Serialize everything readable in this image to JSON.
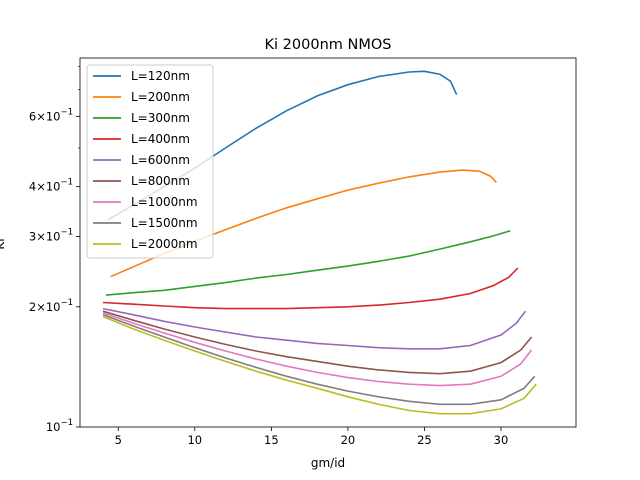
{
  "chart_data": {
    "type": "line",
    "title": "Ki 2000nm NMOS",
    "xlabel": "gm/id",
    "ylabel": "Ki",
    "xlim": [
      2.5,
      34.9
    ],
    "ylim": [
      0.1,
      0.84
    ],
    "yscale": "log",
    "xticks": [
      5,
      10,
      15,
      20,
      25,
      30
    ],
    "yticks": [
      {
        "value": 0.1,
        "base": "10",
        "exp": "−1"
      },
      {
        "value": 0.2,
        "base": "2×10",
        "exp": "−1"
      },
      {
        "value": 0.3,
        "base": "3×10",
        "exp": "−1"
      },
      {
        "value": 0.4,
        "base": "4×10",
        "exp": "−1"
      },
      {
        "value": 0.6,
        "base": "6×10",
        "exp": "−1"
      }
    ],
    "minor_yticks": [
      0.5,
      0.7,
      0.8
    ],
    "legend_position": "top-left",
    "series": [
      {
        "name": "L=120nm",
        "color": "#1f77b4",
        "points": [
          [
            4.3,
            0.33
          ],
          [
            6,
            0.36
          ],
          [
            8,
            0.4
          ],
          [
            10,
            0.445
          ],
          [
            12,
            0.5
          ],
          [
            14,
            0.56
          ],
          [
            16,
            0.62
          ],
          [
            18,
            0.675
          ],
          [
            20,
            0.72
          ],
          [
            22,
            0.755
          ],
          [
            24,
            0.775
          ],
          [
            25,
            0.778
          ],
          [
            26,
            0.765
          ],
          [
            26.7,
            0.735
          ],
          [
            27.1,
            0.68
          ]
        ]
      },
      {
        "name": "L=200nm",
        "color": "#ff7f0e",
        "points": [
          [
            4.5,
            0.238
          ],
          [
            6,
            0.252
          ],
          [
            8,
            0.272
          ],
          [
            10,
            0.292
          ],
          [
            12,
            0.312
          ],
          [
            14,
            0.333
          ],
          [
            16,
            0.354
          ],
          [
            18,
            0.373
          ],
          [
            20,
            0.392
          ],
          [
            22,
            0.408
          ],
          [
            24,
            0.423
          ],
          [
            26,
            0.435
          ],
          [
            27.5,
            0.44
          ],
          [
            28.6,
            0.437
          ],
          [
            29.3,
            0.425
          ],
          [
            29.7,
            0.41
          ]
        ]
      },
      {
        "name": "L=300nm",
        "color": "#2ca02c",
        "points": [
          [
            4.2,
            0.214
          ],
          [
            6,
            0.217
          ],
          [
            8,
            0.22
          ],
          [
            10,
            0.225
          ],
          [
            12,
            0.23
          ],
          [
            14,
            0.236
          ],
          [
            16,
            0.241
          ],
          [
            18,
            0.247
          ],
          [
            20,
            0.253
          ],
          [
            22,
            0.26
          ],
          [
            24,
            0.268
          ],
          [
            26,
            0.279
          ],
          [
            28,
            0.291
          ],
          [
            29.5,
            0.301
          ],
          [
            30.6,
            0.31
          ]
        ]
      },
      {
        "name": "L=400nm",
        "color": "#d62728",
        "points": [
          [
            4,
            0.205
          ],
          [
            6,
            0.203
          ],
          [
            8,
            0.201
          ],
          [
            10,
            0.199
          ],
          [
            12,
            0.198
          ],
          [
            14,
            0.198
          ],
          [
            16,
            0.198
          ],
          [
            18,
            0.199
          ],
          [
            20,
            0.2
          ],
          [
            22,
            0.202
          ],
          [
            24,
            0.205
          ],
          [
            26,
            0.209
          ],
          [
            28,
            0.216
          ],
          [
            29.5,
            0.226
          ],
          [
            30.5,
            0.237
          ],
          [
            31.1,
            0.25
          ]
        ]
      },
      {
        "name": "L=600nm",
        "color": "#9467bd",
        "points": [
          [
            4,
            0.198
          ],
          [
            6,
            0.191
          ],
          [
            8,
            0.184
          ],
          [
            10,
            0.178
          ],
          [
            12,
            0.173
          ],
          [
            14,
            0.168
          ],
          [
            16,
            0.165
          ],
          [
            18,
            0.162
          ],
          [
            20,
            0.16
          ],
          [
            22,
            0.158
          ],
          [
            24,
            0.157
          ],
          [
            26,
            0.157
          ],
          [
            28,
            0.16
          ],
          [
            30,
            0.17
          ],
          [
            31,
            0.182
          ],
          [
            31.6,
            0.195
          ]
        ]
      },
      {
        "name": "L=800nm",
        "color": "#8c564b",
        "points": [
          [
            4,
            0.195
          ],
          [
            6,
            0.185
          ],
          [
            8,
            0.176
          ],
          [
            10,
            0.168
          ],
          [
            12,
            0.161
          ],
          [
            14,
            0.155
          ],
          [
            16,
            0.15
          ],
          [
            18,
            0.146
          ],
          [
            20,
            0.142
          ],
          [
            22,
            0.139
          ],
          [
            24,
            0.137
          ],
          [
            26,
            0.136
          ],
          [
            28,
            0.138
          ],
          [
            30,
            0.145
          ],
          [
            31.3,
            0.156
          ],
          [
            32,
            0.168
          ]
        ]
      },
      {
        "name": "L=1000nm",
        "color": "#e377c2",
        "points": [
          [
            4,
            0.193
          ],
          [
            6,
            0.182
          ],
          [
            8,
            0.172
          ],
          [
            10,
            0.163
          ],
          [
            12,
            0.155
          ],
          [
            14,
            0.148
          ],
          [
            16,
            0.142
          ],
          [
            18,
            0.137
          ],
          [
            20,
            0.133
          ],
          [
            22,
            0.13
          ],
          [
            24,
            0.128
          ],
          [
            26,
            0.127
          ],
          [
            28,
            0.128
          ],
          [
            30,
            0.134
          ],
          [
            31.3,
            0.144
          ],
          [
            32,
            0.156
          ]
        ]
      },
      {
        "name": "L=1500nm",
        "color": "#7f7f7f",
        "points": [
          [
            4,
            0.191
          ],
          [
            6,
            0.179
          ],
          [
            8,
            0.168
          ],
          [
            10,
            0.158
          ],
          [
            12,
            0.149
          ],
          [
            14,
            0.141
          ],
          [
            16,
            0.134
          ],
          [
            18,
            0.128
          ],
          [
            20,
            0.123
          ],
          [
            22,
            0.119
          ],
          [
            24,
            0.116
          ],
          [
            26,
            0.114
          ],
          [
            28,
            0.114
          ],
          [
            30,
            0.117
          ],
          [
            31.5,
            0.125
          ],
          [
            32.2,
            0.134
          ]
        ]
      },
      {
        "name": "L=2000nm",
        "color": "#bcbd22",
        "points": [
          [
            4,
            0.189
          ],
          [
            6,
            0.176
          ],
          [
            8,
            0.165
          ],
          [
            10,
            0.155
          ],
          [
            12,
            0.146
          ],
          [
            14,
            0.138
          ],
          [
            16,
            0.131
          ],
          [
            18,
            0.125
          ],
          [
            20,
            0.119
          ],
          [
            22,
            0.114
          ],
          [
            24,
            0.11
          ],
          [
            26,
            0.108
          ],
          [
            28,
            0.108
          ],
          [
            30,
            0.111
          ],
          [
            31.5,
            0.118
          ],
          [
            32.3,
            0.128
          ]
        ]
      }
    ]
  }
}
